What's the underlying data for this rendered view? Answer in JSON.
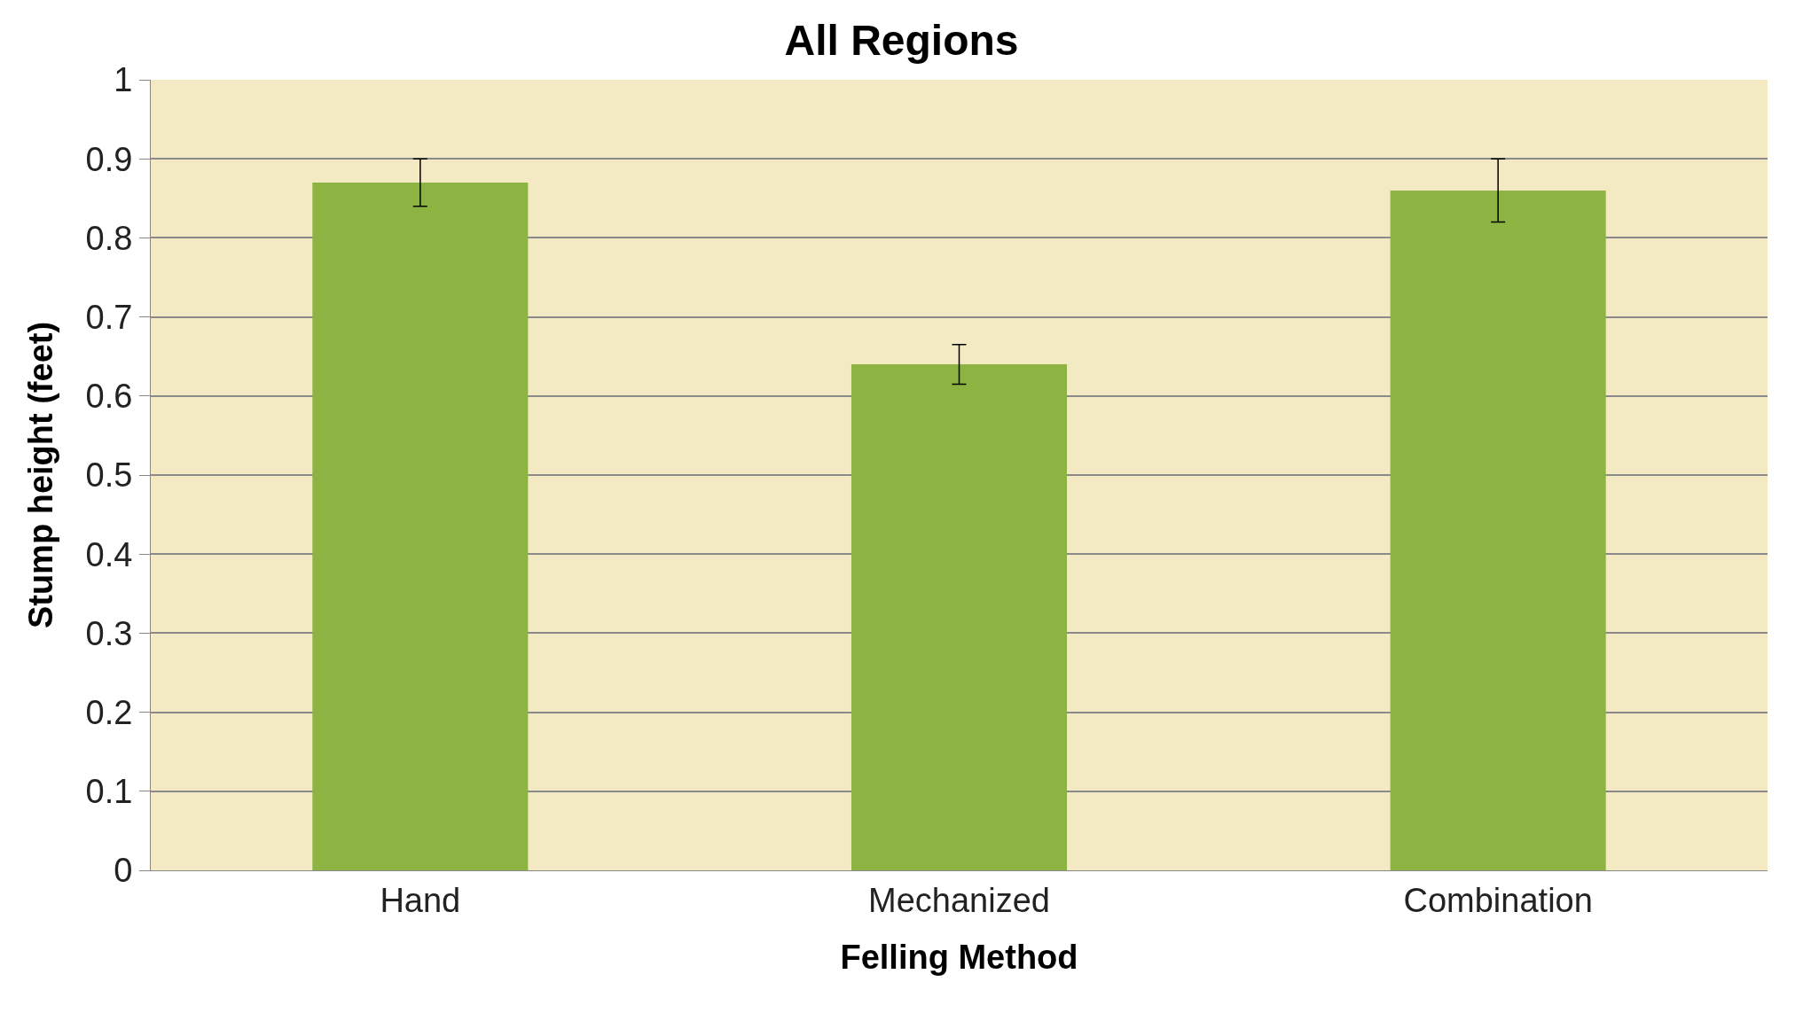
{
  "chart_data": {
    "type": "bar",
    "title": "All Regions",
    "xlabel": "Felling Method",
    "ylabel": "Stump height (feet)",
    "categories": [
      "Hand",
      "Mechanized",
      "Combination"
    ],
    "values": [
      0.87,
      0.64,
      0.86
    ],
    "errors": [
      0.03,
      0.025,
      0.04
    ],
    "color": "#8db443",
    "ylim": [
      0,
      1
    ],
    "yticks": [
      0,
      0.1,
      0.2,
      0.3,
      0.4,
      0.5,
      0.6,
      0.7,
      0.8,
      0.9,
      1
    ],
    "grid": "y"
  }
}
